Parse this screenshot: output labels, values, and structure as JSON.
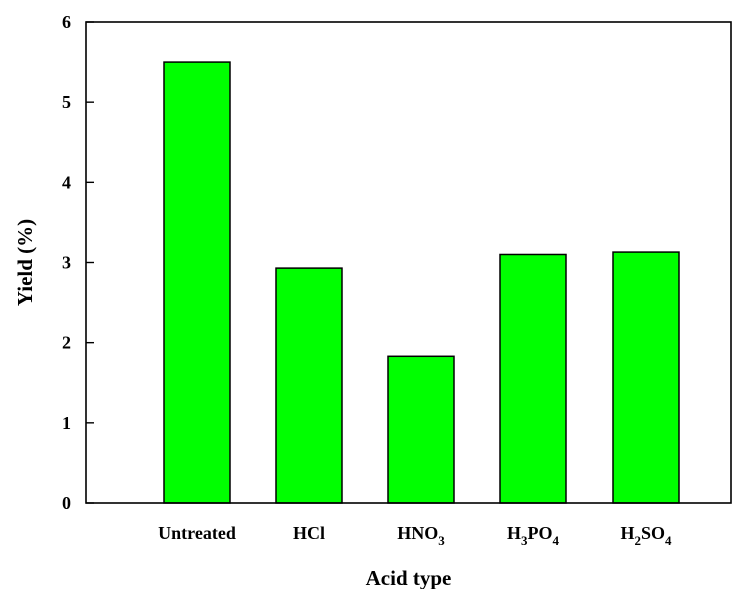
{
  "chart_data": {
    "type": "bar",
    "categories": [
      "Untreated",
      "HCl",
      "HNO3",
      "H3PO4",
      "H2SO4"
    ],
    "category_labels": [
      [
        {
          "t": "Untreated",
          "sub": false
        }
      ],
      [
        {
          "t": "HCl",
          "sub": false
        }
      ],
      [
        {
          "t": "HNO",
          "sub": false
        },
        {
          "t": "3",
          "sub": true
        }
      ],
      [
        {
          "t": "H",
          "sub": false
        },
        {
          "t": "3",
          "sub": true
        },
        {
          "t": "PO",
          "sub": false
        },
        {
          "t": "4",
          "sub": true
        }
      ],
      [
        {
          "t": "H",
          "sub": false
        },
        {
          "t": "2",
          "sub": true
        },
        {
          "t": "SO",
          "sub": false
        },
        {
          "t": "4",
          "sub": true
        }
      ]
    ],
    "values": [
      5.5,
      2.93,
      1.83,
      3.1,
      3.13
    ],
    "xlabel": "Acid type",
    "ylabel": "Yield (%)",
    "ylim": [
      0,
      6
    ],
    "yticks": [
      "0",
      "1",
      "2",
      "3",
      "4",
      "5",
      "6"
    ],
    "bar_color": "#00ff00",
    "bar_edge_color": "#000000",
    "grid": false,
    "legend": "none"
  }
}
